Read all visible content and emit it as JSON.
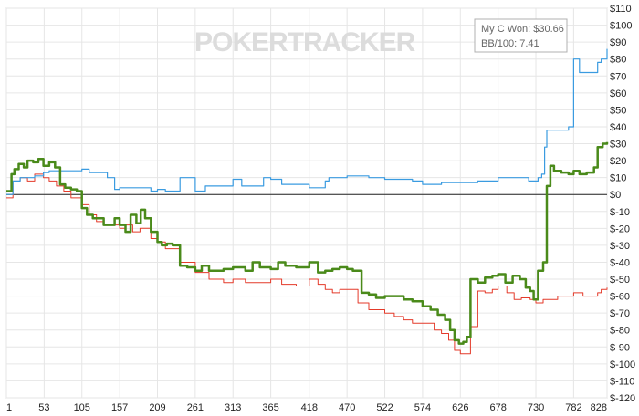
{
  "watermark": "POKERTRACKER",
  "legend": {
    "won_text": "My C Won: $30.66",
    "bb_text": "BB/100: 7.41"
  },
  "colors": {
    "won": "#4a8a1a",
    "showdown": "#3a9be0",
    "non_showdown": "#e43a2a",
    "grid": "#e6e6e6",
    "zero_line": "#222222"
  },
  "chart_data": {
    "type": "line",
    "title": "",
    "xlabel": "",
    "ylabel": "",
    "xlim": [
      1,
      828
    ],
    "ylim": [
      -120,
      110
    ],
    "x_ticks": [
      1,
      53,
      105,
      157,
      209,
      261,
      313,
      365,
      418,
      470,
      522,
      574,
      626,
      678,
      730,
      782,
      828
    ],
    "y_ticks": [
      110,
      100,
      90,
      80,
      70,
      60,
      50,
      40,
      30,
      20,
      10,
      0,
      -10,
      -20,
      -30,
      -40,
      -50,
      -60,
      -70,
      -80,
      -90,
      -100,
      -110,
      -120
    ],
    "y_tick_labels": [
      "$110",
      "$100",
      "$90",
      "$80",
      "$70",
      "$60",
      "$50",
      "$40",
      "$30",
      "$20",
      "$10",
      "$0",
      "$-10",
      "$-20",
      "$-30",
      "$-40",
      "$-50",
      "$-60",
      "$-70",
      "$-80",
      "$-90",
      "$-100",
      "$-110",
      "$-120"
    ],
    "grid": true,
    "legend_position": "top-right",
    "series": [
      {
        "key": "won",
        "x": [
          1,
          8,
          12,
          18,
          25,
          30,
          38,
          45,
          52,
          60,
          68,
          75,
          82,
          90,
          98,
          105,
          112,
          120,
          128,
          135,
          142,
          150,
          157,
          165,
          172,
          180,
          186,
          192,
          200,
          209,
          215,
          222,
          230,
          240,
          250,
          261,
          270,
          280,
          290,
          300,
          313,
          320,
          330,
          340,
          350,
          365,
          375,
          385,
          400,
          418,
          430,
          440,
          450,
          460,
          470,
          478,
          490,
          500,
          510,
          522,
          535,
          548,
          560,
          574,
          585,
          595,
          605,
          612,
          618,
          624,
          630,
          635,
          640,
          650,
          660,
          670,
          678,
          688,
          698,
          708,
          716,
          722,
          727,
          733,
          740,
          745,
          750,
          755,
          765,
          775,
          782,
          790,
          800,
          810,
          815,
          822,
          828
        ],
        "y": [
          2,
          12,
          15,
          18,
          16,
          20,
          19,
          21,
          17,
          19,
          16,
          6,
          4,
          3,
          2,
          -8,
          -12,
          -14,
          -14,
          -18,
          -18,
          -14,
          -18,
          -22,
          -12,
          -17,
          -9,
          -14,
          -22,
          -28,
          -30,
          -29,
          -30,
          -42,
          -43,
          -45,
          -42,
          -45,
          -45,
          -44,
          -43,
          -43,
          -45,
          -40,
          -43,
          -44,
          -40,
          -42,
          -43,
          -40,
          -46,
          -45,
          -44,
          -43,
          -44,
          -45,
          -58,
          -59,
          -61,
          -60,
          -60,
          -62,
          -63,
          -66,
          -68,
          -71,
          -74,
          -80,
          -86,
          -88,
          -87,
          -84,
          -50,
          -52,
          -49,
          -48,
          -47,
          -52,
          -48,
          -50,
          -55,
          -57,
          -62,
          -45,
          -40,
          5,
          17,
          14,
          13,
          12,
          14,
          12,
          13,
          16,
          28,
          30,
          31
        ]
      },
      {
        "key": "showdown",
        "x": [
          1,
          10,
          20,
          40,
          52,
          60,
          100,
          105,
          115,
          130,
          140,
          150,
          157,
          175,
          200,
          209,
          220,
          230,
          240,
          255,
          261,
          275,
          300,
          313,
          325,
          340,
          355,
          365,
          380,
          400,
          418,
          430,
          440,
          445,
          460,
          470,
          490,
          500,
          522,
          540,
          560,
          574,
          600,
          626,
          650,
          678,
          700,
          720,
          733,
          738,
          742,
          745,
          760,
          775,
          782,
          790,
          800,
          810,
          815,
          820,
          828
        ],
        "y": [
          0,
          8,
          10,
          11,
          13,
          14,
          14,
          15,
          13,
          13,
          10,
          3,
          4,
          4,
          2,
          3,
          2,
          2,
          10,
          10,
          2,
          5,
          5,
          9,
          5,
          5,
          10,
          9,
          6,
          6,
          4,
          4,
          8,
          10,
          10,
          11,
          11,
          10,
          9,
          9,
          8,
          6,
          7,
          7,
          8,
          10,
          10,
          8,
          10,
          12,
          28,
          38,
          38,
          40,
          80,
          72,
          72,
          72,
          78,
          80,
          86
        ]
      },
      {
        "key": "non_showdown",
        "x": [
          1,
          10,
          20,
          30,
          40,
          52,
          60,
          70,
          80,
          90,
          105,
          115,
          125,
          135,
          145,
          157,
          165,
          175,
          185,
          200,
          209,
          220,
          240,
          261,
          280,
          300,
          313,
          330,
          350,
          365,
          380,
          400,
          418,
          430,
          440,
          450,
          460,
          470,
          485,
          500,
          522,
          535,
          548,
          560,
          574,
          590,
          600,
          610,
          618,
          626,
          640,
          650,
          660,
          670,
          678,
          690,
          700,
          710,
          722,
          730,
          740,
          750,
          760,
          770,
          782,
          795,
          805,
          815,
          820,
          828
        ],
        "y": [
          -2,
          8,
          10,
          8,
          12,
          10,
          8,
          5,
          2,
          -2,
          -6,
          -12,
          -16,
          -18,
          -18,
          -20,
          -18,
          -22,
          -20,
          -26,
          -28,
          -32,
          -40,
          -46,
          -50,
          -52,
          -50,
          -52,
          -52,
          -50,
          -53,
          -54,
          -50,
          -53,
          -56,
          -58,
          -56,
          -56,
          -64,
          -68,
          -70,
          -72,
          -74,
          -76,
          -76,
          -80,
          -82,
          -86,
          -92,
          -94,
          -78,
          -57,
          -58,
          -56,
          -54,
          -58,
          -62,
          -61,
          -62,
          -64,
          -62,
          -62,
          -60,
          -60,
          -58,
          -60,
          -60,
          -58,
          -56,
          -55
        ]
      }
    ]
  }
}
